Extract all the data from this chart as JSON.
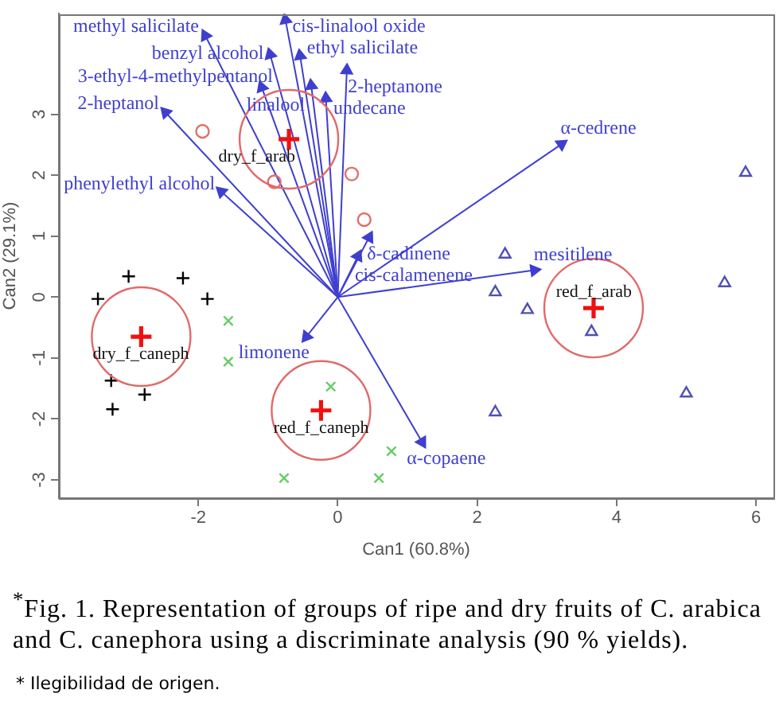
{
  "chart_data": {
    "type": "scatter",
    "xlabel": "Can1 (60.8%)",
    "ylabel": "Can2 (29.1%)",
    "xlim": [
      -4,
      6.25
    ],
    "ylim": [
      -3.3,
      4.65
    ],
    "xticks": [
      -2,
      0,
      2,
      4,
      6
    ],
    "yticks": [
      -3,
      -2,
      -1,
      0,
      1,
      2,
      3
    ],
    "legend": false,
    "series": [
      {
        "type": "line",
        "name": "methyl salicilate",
        "color": "#3f3fcf",
        "x": [
          0,
          -1.9
        ],
        "values": [
          0,
          4.29
        ]
      },
      {
        "type": "line",
        "name": "cis-linalool oxide",
        "color": "#3f3fcf",
        "x": [
          0,
          -0.75
        ],
        "values": [
          0,
          4.55
        ]
      },
      {
        "type": "line",
        "name": "ethyl salicilate",
        "color": "#3f3fcf",
        "x": [
          0,
          -0.54
        ],
        "values": [
          0,
          3.96
        ]
      },
      {
        "type": "line",
        "name": "benzyl alcohol",
        "color": "#3f3fcf",
        "x": [
          0,
          -0.97
        ],
        "values": [
          0,
          3.98
        ]
      },
      {
        "type": "line",
        "name": "2-heptanone",
        "color": "#3f3fcf",
        "x": [
          0,
          0.13
        ],
        "values": [
          0,
          3.72
        ]
      },
      {
        "type": "line",
        "name": "3-ethyl-4-methylpentanol",
        "color": "#3f3fcf",
        "x": [
          0,
          -1.09
        ],
        "values": [
          0,
          3.44
        ]
      },
      {
        "type": "line",
        "name": "linalool",
        "color": "#3f3fcf",
        "x": [
          0,
          -0.38
        ],
        "values": [
          0,
          3.47
        ]
      },
      {
        "type": "line",
        "name": "undecane",
        "color": "#3f3fcf",
        "x": [
          0,
          -0.17
        ],
        "values": [
          0,
          3.26
        ]
      },
      {
        "type": "line",
        "name": "2-heptanol",
        "color": "#3f3fcf",
        "x": [
          0,
          -2.47
        ],
        "values": [
          0,
          3.03
        ]
      },
      {
        "type": "line",
        "name": "phenylethyl alcohol",
        "color": "#3f3fcf",
        "x": [
          0,
          -1.67
        ],
        "values": [
          0,
          1.73
        ]
      },
      {
        "type": "line",
        "name": "α-cedrene",
        "color": "#3f3fcf",
        "x": [
          0,
          3.21
        ],
        "values": [
          0,
          2.51
        ]
      },
      {
        "type": "line",
        "name": "δ-cadinene",
        "color": "#3f3fcf",
        "x": [
          0,
          0.45
        ],
        "values": [
          0,
          0.98
        ]
      },
      {
        "type": "line",
        "name": "cis-calamenene",
        "color": "#3f3fcf",
        "x": [
          0,
          0.29
        ],
        "values": [
          0,
          0.67
        ]
      },
      {
        "type": "line",
        "name": "mesitilene",
        "color": "#3f3fcf",
        "x": [
          0,
          2.82
        ],
        "values": [
          0,
          0.44
        ]
      },
      {
        "type": "line",
        "name": "limonene",
        "color": "#3f3fcf",
        "x": [
          0,
          -0.45
        ],
        "values": [
          0,
          -0.65
        ]
      },
      {
        "type": "line",
        "name": "α-copaene",
        "color": "#3f3fcf",
        "x": [
          0,
          1.21
        ],
        "values": [
          0,
          -2.38
        ]
      },
      {
        "marker": "circle",
        "color": "#e0706a",
        "x": [
          -1.94,
          -0.91,
          0.2,
          0.38
        ],
        "values": [
          2.72,
          1.89,
          2.02,
          1.27
        ]
      },
      {
        "marker": "cross",
        "color": "#000000",
        "x": [
          -3.0,
          -2.22,
          -3.44,
          -1.87,
          -3.25,
          -2.77,
          -3.23
        ],
        "values": [
          0.34,
          0.31,
          -0.03,
          -0.03,
          -1.37,
          -1.6,
          -1.84
        ]
      },
      {
        "marker": "x",
        "color": "#66cc66",
        "x": [
          -1.57,
          -1.57,
          -0.1,
          0.77,
          -0.77,
          0.59
        ],
        "values": [
          -0.39,
          -1.06,
          -1.47,
          -2.53,
          -2.97,
          -2.97
        ]
      },
      {
        "marker": "triangle",
        "color": "#4f4fb5",
        "x": [
          2.4,
          2.26,
          2.72,
          5.85,
          5.55,
          3.64,
          2.26,
          5.0
        ],
        "values": [
          0.7,
          0.08,
          -0.21,
          2.04,
          0.23,
          -0.57,
          -1.89,
          -1.58
        ]
      },
      {
        "type": "bubble",
        "color": "#e06a6a",
        "x": [
          -0.7,
          -2.82,
          -0.24,
          3.67
        ],
        "values": [
          2.59,
          -0.65,
          -1.86,
          -0.18
        ],
        "sizes": [
          1,
          1,
          1,
          1
        ]
      },
      {
        "marker": "cross",
        "color": "#ee1111",
        "x": [
          -0.7,
          -2.82,
          -0.24,
          3.67
        ],
        "values": [
          2.59,
          -0.65,
          -1.86,
          -0.18
        ]
      }
    ],
    "annotations": [
      {
        "text": "dry_f_arab",
        "x": -0.7,
        "y": 2.59
      },
      {
        "text": "dry_f_caneph",
        "x": -2.82,
        "y": -0.65
      },
      {
        "text": "red_f_caneph",
        "x": -0.24,
        "y": -1.86
      },
      {
        "text": "red_f_arab",
        "x": 3.67,
        "y": -0.18
      },
      "$^{*}$Fig. 1. Representation of groups of ripe and dry fruits of C. arabica and C. canephora using a discriminate analysis (90 % yields).",
      "* Ilegibilidad de origen."
    ]
  }
}
